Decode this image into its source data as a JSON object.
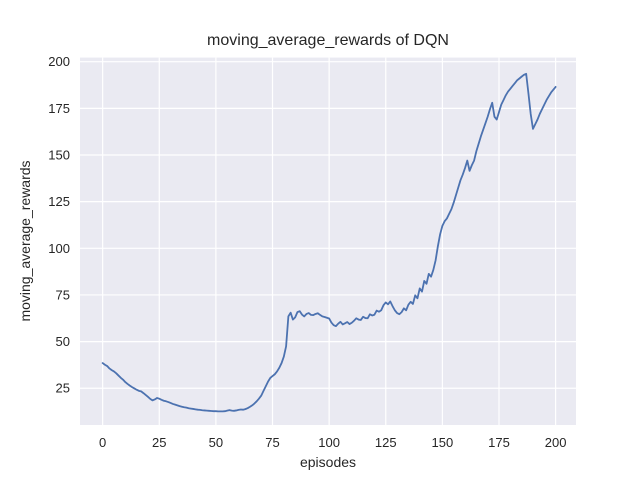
{
  "chart_data": {
    "type": "line",
    "title": "moving_average_rewards of DQN",
    "xlabel": "episodes",
    "ylabel": "moving_average_rewards",
    "x_ticks": [
      0,
      25,
      50,
      75,
      100,
      125,
      150,
      175,
      200
    ],
    "y_ticks": [
      25,
      50,
      75,
      100,
      125,
      150,
      175,
      200
    ],
    "xlim": [
      -10,
      209
    ],
    "ylim": [
      5.3,
      202.2
    ],
    "grid": true,
    "legend_position": "none",
    "style": {
      "plot_bg": "#eaeaf2",
      "grid_color": "#ffffff",
      "line_color": "#4c72b0",
      "text_color": "#262626",
      "line_width": 1.8,
      "grid_width": 1.2
    },
    "series": [
      {
        "name": "moving_average_rewards",
        "x_start": 0,
        "x_step": 1,
        "values": [
          38.5,
          37.6,
          36.9,
          35.6,
          34.7,
          34.0,
          33.0,
          31.8,
          30.6,
          29.6,
          28.3,
          27.3,
          26.4,
          25.6,
          24.9,
          24.2,
          23.6,
          23.3,
          22.4,
          21.4,
          20.4,
          19.3,
          18.5,
          19.0,
          19.8,
          19.4,
          18.8,
          18.3,
          18.0,
          17.6,
          17.1,
          16.6,
          16.2,
          15.8,
          15.4,
          15.1,
          14.8,
          14.6,
          14.3,
          14.1,
          13.9,
          13.7,
          13.5,
          13.4,
          13.2,
          13.1,
          13.0,
          12.9,
          12.8,
          12.7,
          12.7,
          12.6,
          12.6,
          12.6,
          12.7,
          13.0,
          13.3,
          13.0,
          12.9,
          13.1,
          13.4,
          13.6,
          13.5,
          13.8,
          14.3,
          15.0,
          15.8,
          16.8,
          18.0,
          19.4,
          21.0,
          23.5,
          26.0,
          28.5,
          30.5,
          31.5,
          32.5,
          34.0,
          36.0,
          38.5,
          42.0,
          47.5,
          63.5,
          65.5,
          61.8,
          63.0,
          65.8,
          66.3,
          64.5,
          63.5,
          64.8,
          65.3,
          64.3,
          64.2,
          64.8,
          65.2,
          64.3,
          63.5,
          63.2,
          62.8,
          62.4,
          60.2,
          58.8,
          58.3,
          59.6,
          60.6,
          59.2,
          59.8,
          60.5,
          59.4,
          60.1,
          61.2,
          62.5,
          61.8,
          61.6,
          63.3,
          62.6,
          62.5,
          64.6,
          64.0,
          64.4,
          66.6,
          66.0,
          66.8,
          69.5,
          71.0,
          70.0,
          71.5,
          69.0,
          66.8,
          65.3,
          64.7,
          65.8,
          67.8,
          66.8,
          69.8,
          71.3,
          70.2,
          74.8,
          73.2,
          78.5,
          76.8,
          82.5,
          81.0,
          86.3,
          84.8,
          88.4,
          93.5,
          101.0,
          107.5,
          112.0,
          114.5,
          116.0,
          118.5,
          121.0,
          124.5,
          128.5,
          132.5,
          136.5,
          139.5,
          143.0,
          147.0,
          141.5,
          144.5,
          147.0,
          152.0,
          156.0,
          160.0,
          163.5,
          167.0,
          170.5,
          174.5,
          178.0,
          170.5,
          169.0,
          173.0,
          177.0,
          179.5,
          182.0,
          184.0,
          185.5,
          187.0,
          188.5,
          190.0,
          191.0,
          192.0,
          193.0,
          193.5,
          183.0,
          172.0,
          164.0,
          166.5,
          169.0,
          172.0,
          174.5,
          177.0,
          179.5,
          181.5,
          183.5,
          185.0,
          186.5
        ]
      }
    ]
  }
}
